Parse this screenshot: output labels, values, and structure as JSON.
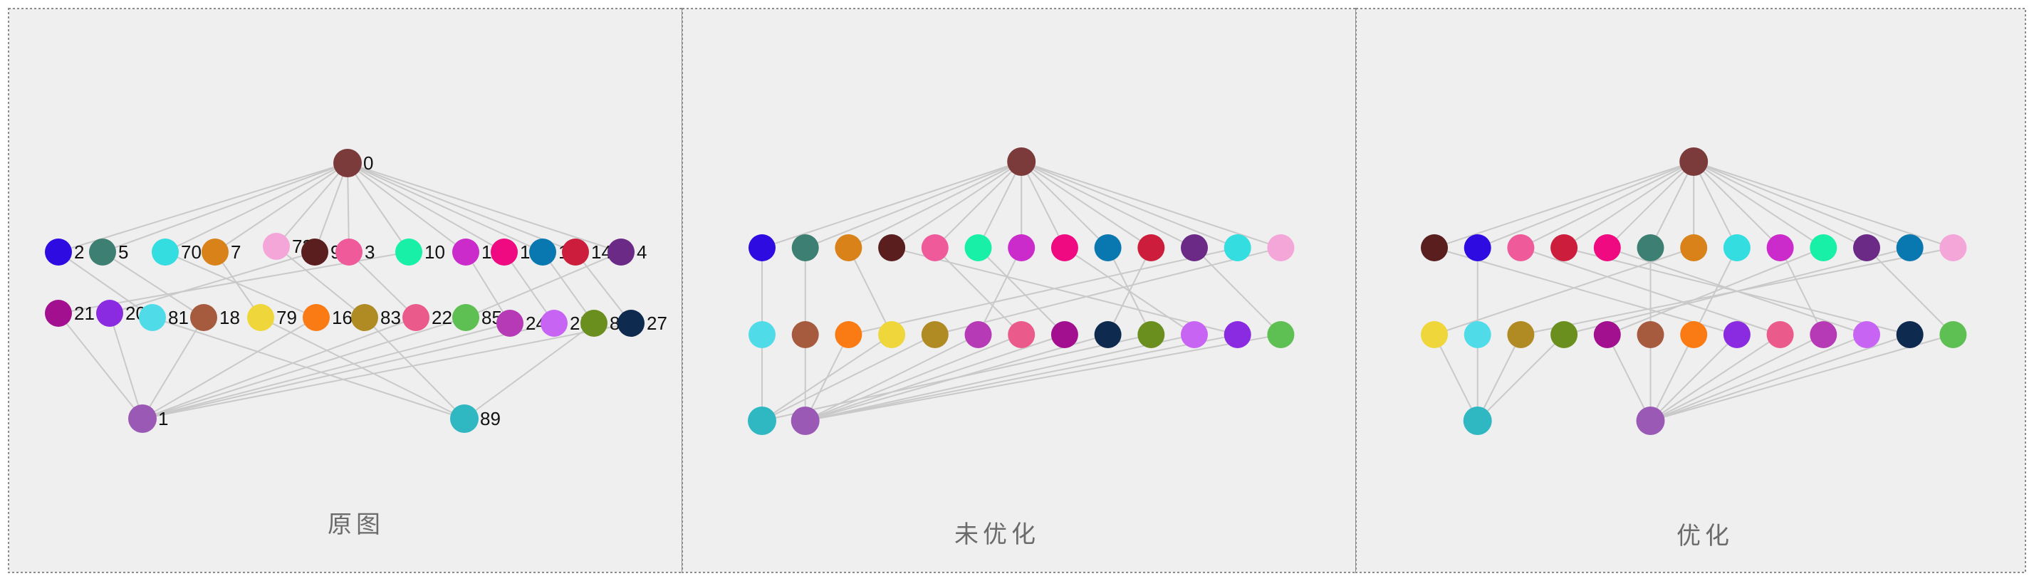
{
  "panels": [
    {
      "id": "original",
      "title": "原图",
      "show_labels": true
    },
    {
      "id": "unoptimized",
      "title": "未优化",
      "show_labels": false
    },
    {
      "id": "optimized",
      "title": "优化",
      "show_labels": false
    }
  ],
  "nodes": [
    {
      "id": "0",
      "label": "0",
      "color": "#7b3b3b"
    },
    {
      "id": "1",
      "label": "1",
      "color": "#9b59b6"
    },
    {
      "id": "89",
      "label": "89",
      "color": "#2fb8c2"
    },
    {
      "id": "2",
      "label": "2",
      "color": "#2e0be0"
    },
    {
      "id": "5",
      "label": "5",
      "color": "#3d7f73"
    },
    {
      "id": "70",
      "label": "70",
      "color": "#33dde0"
    },
    {
      "id": "7",
      "label": "7",
      "color": "#d9821a"
    },
    {
      "id": "73",
      "label": "73",
      "color": "#f4a6d9"
    },
    {
      "id": "9",
      "label": "9",
      "color": "#5a1e1e"
    },
    {
      "id": "3",
      "label": "3",
      "color": "#ef5a9b"
    },
    {
      "id": "10",
      "label": "10",
      "color": "#18f0a8"
    },
    {
      "id": "11",
      "label": "11",
      "color": "#cc2bcc"
    },
    {
      "id": "12",
      "label": "12",
      "color": "#ef0a82"
    },
    {
      "id": "13",
      "label": "13",
      "color": "#0a78b0"
    },
    {
      "id": "14",
      "label": "14",
      "color": "#cc1e3c"
    },
    {
      "id": "4",
      "label": "4",
      "color": "#6a2a86"
    },
    {
      "id": "21",
      "label": "21",
      "color": "#a2108f"
    },
    {
      "id": "20",
      "label": "20",
      "color": "#8a2be2"
    },
    {
      "id": "81",
      "label": "81",
      "color": "#4fdbe8"
    },
    {
      "id": "18",
      "label": "18",
      "color": "#a65a3e"
    },
    {
      "id": "79",
      "label": "79",
      "color": "#efd63a"
    },
    {
      "id": "16",
      "label": "16",
      "color": "#fa7a14"
    },
    {
      "id": "83",
      "label": "83",
      "color": "#b08a22"
    },
    {
      "id": "22",
      "label": "22",
      "color": "#ea5a8a"
    },
    {
      "id": "85",
      "label": "85",
      "color": "#5ebf52"
    },
    {
      "id": "24",
      "label": "24",
      "color": "#b63ab6"
    },
    {
      "id": "25",
      "label": "25",
      "color": "#c864f4"
    },
    {
      "id": "87",
      "label": "87",
      "color": "#6b8f1e"
    },
    {
      "id": "27",
      "label": "27",
      "color": "#0e2a4e"
    }
  ],
  "edges": [
    [
      "0",
      "2"
    ],
    [
      "0",
      "5"
    ],
    [
      "0",
      "70"
    ],
    [
      "0",
      "7"
    ],
    [
      "0",
      "73"
    ],
    [
      "0",
      "9"
    ],
    [
      "0",
      "3"
    ],
    [
      "0",
      "10"
    ],
    [
      "0",
      "11"
    ],
    [
      "0",
      "12"
    ],
    [
      "0",
      "13"
    ],
    [
      "0",
      "14"
    ],
    [
      "0",
      "4"
    ],
    [
      "2",
      "81"
    ],
    [
      "5",
      "18"
    ],
    [
      "70",
      "16"
    ],
    [
      "7",
      "79"
    ],
    [
      "73",
      "83"
    ],
    [
      "9",
      "20"
    ],
    [
      "3",
      "22"
    ],
    [
      "10",
      "21"
    ],
    [
      "11",
      "24"
    ],
    [
      "12",
      "25"
    ],
    [
      "13",
      "87"
    ],
    [
      "14",
      "27"
    ],
    [
      "4",
      "85"
    ],
    [
      "79",
      "89"
    ],
    [
      "81",
      "89"
    ],
    [
      "83",
      "89"
    ],
    [
      "87",
      "89"
    ],
    [
      "21",
      "1"
    ],
    [
      "20",
      "1"
    ],
    [
      "18",
      "1"
    ],
    [
      "16",
      "1"
    ],
    [
      "22",
      "1"
    ],
    [
      "85",
      "1"
    ],
    [
      "24",
      "1"
    ],
    [
      "25",
      "1"
    ],
    [
      "27",
      "1"
    ]
  ]
}
